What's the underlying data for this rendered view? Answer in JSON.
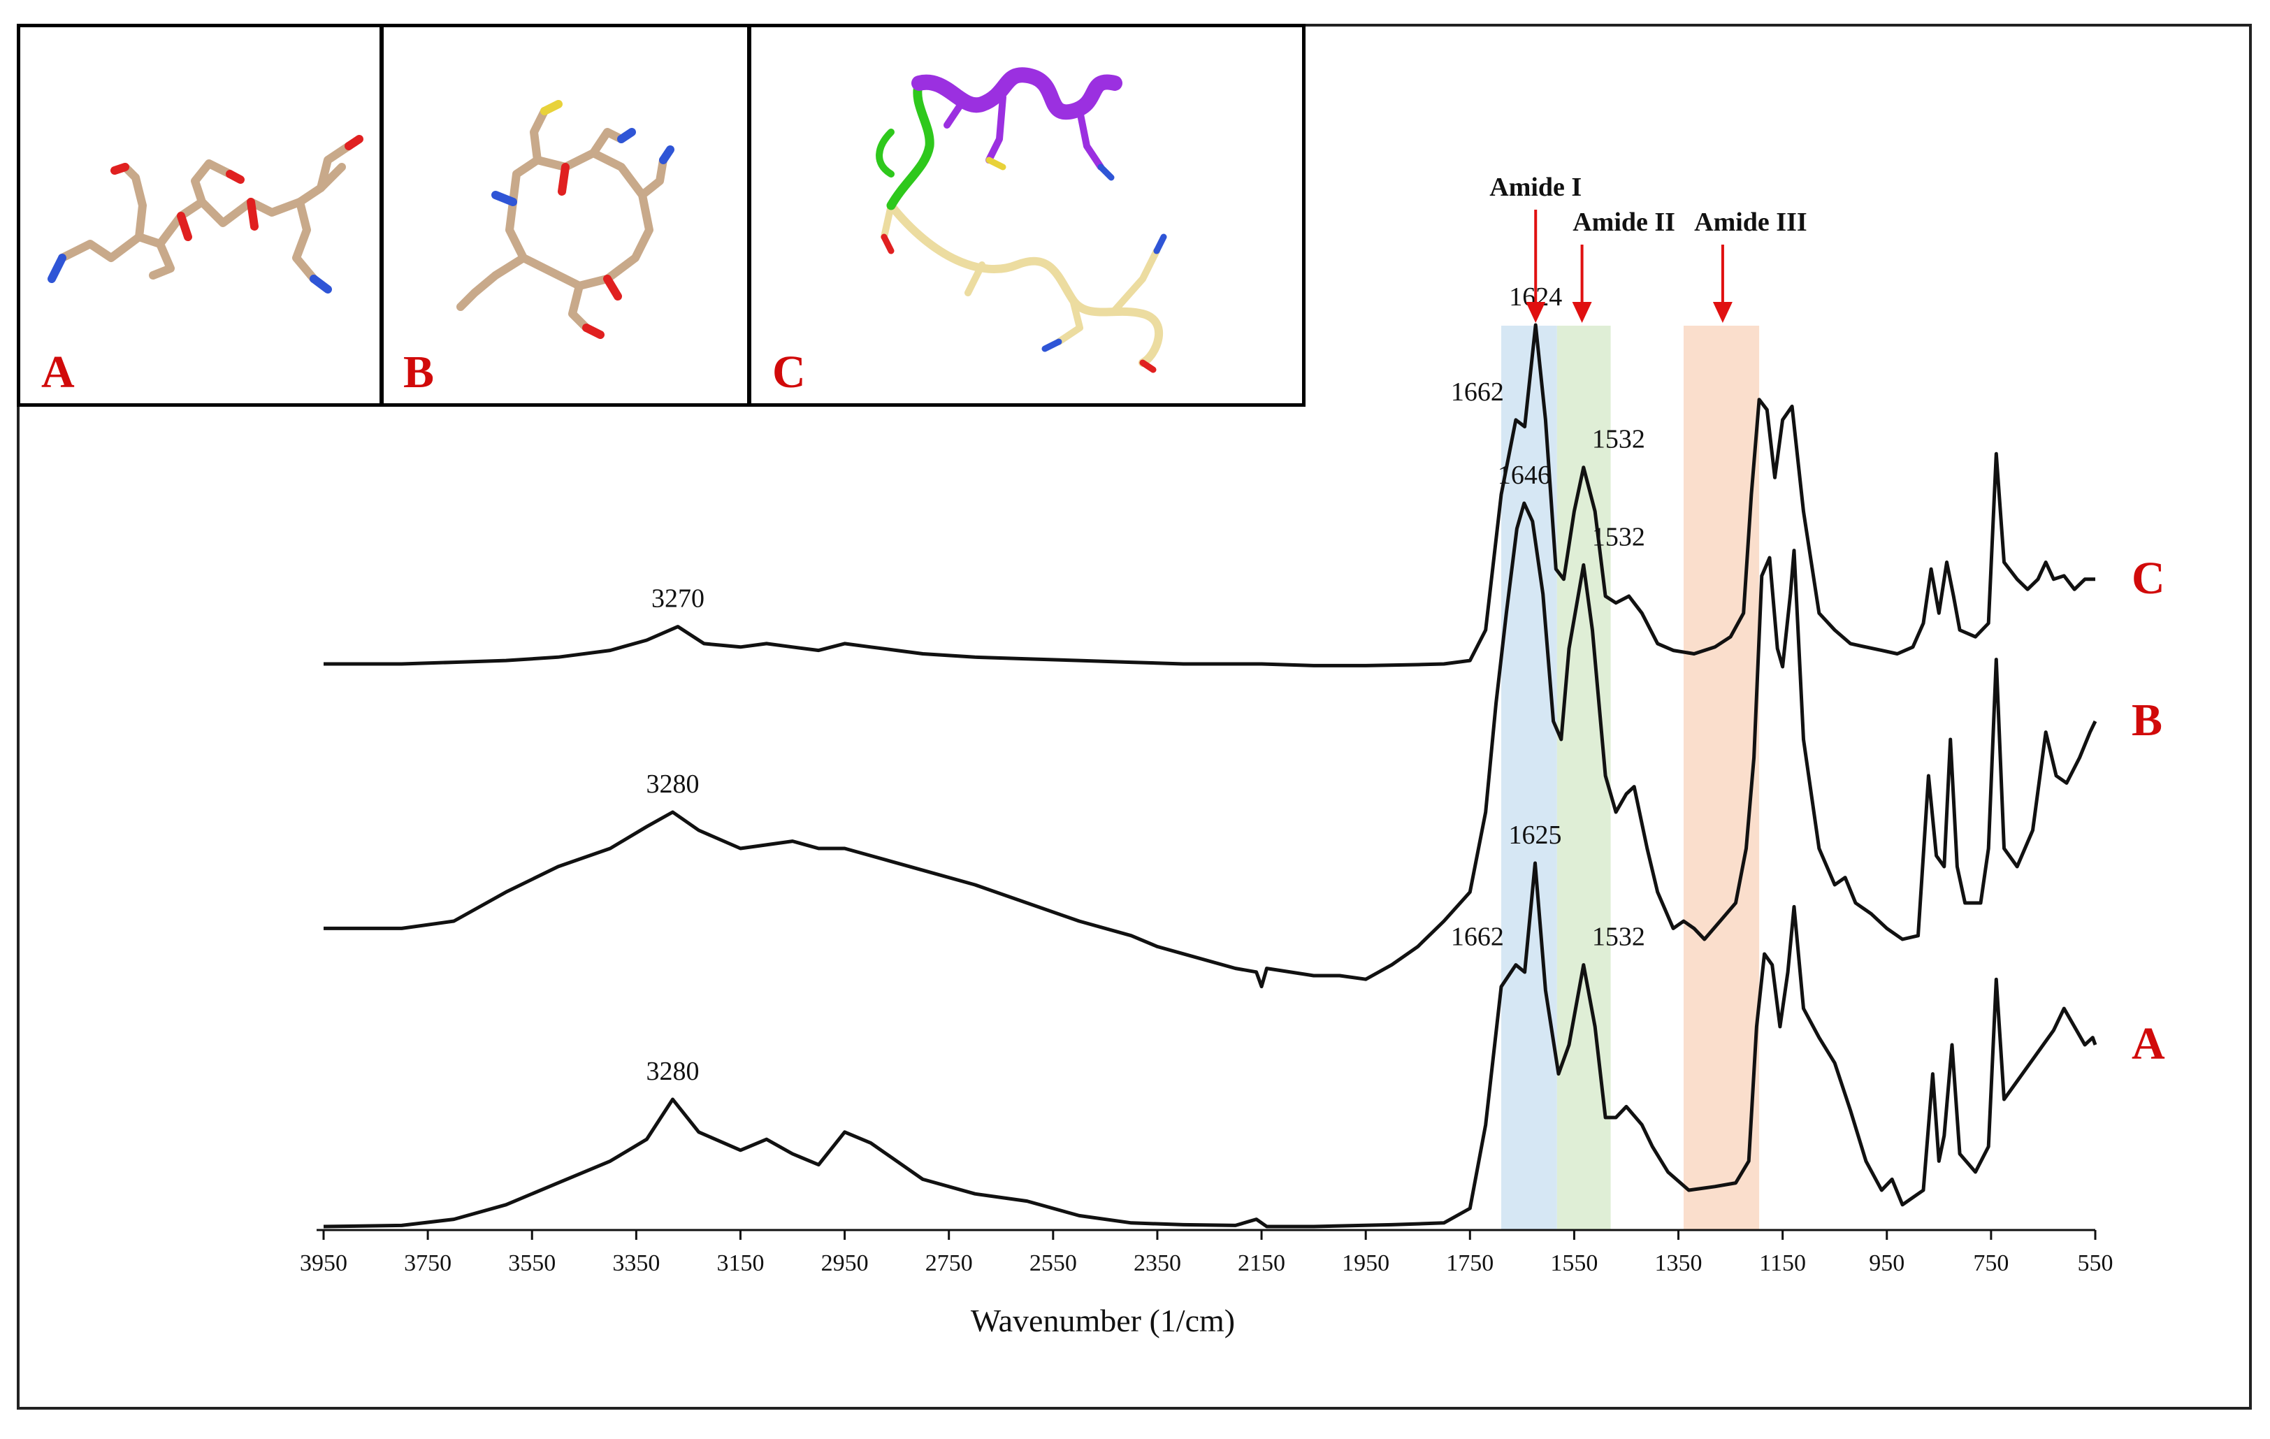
{
  "insets": [
    {
      "label": "A",
      "structure": "extended-peptide-stick-model"
    },
    {
      "label": "B",
      "structure": "compact-peptide-stick-model"
    },
    {
      "label": "C",
      "structure": "helix-ribbon-peptide-model"
    }
  ],
  "colors": {
    "curve": "#111111",
    "series_label": "#d10a0a",
    "arrow": "#e01010",
    "amide_I_band": "#cfe3f2",
    "amide_II_band": "#d9ebcf",
    "amide_III_band": "#f9d8c3",
    "carbon": "#c8a98a",
    "nitrogen": "#2f55d6",
    "oxygen": "#e02020",
    "sulfur": "#e8d23a",
    "helix_purple": "#9b30e0",
    "helix_green": "#2ec81c",
    "coil_yellow": "#ecdca0"
  },
  "chart_data": {
    "type": "line",
    "title": "",
    "xlabel": "Wavenumber (1/cm)",
    "ylabel": "",
    "xlim": [
      3950,
      550
    ],
    "x_reversed": true,
    "x_ticks": [
      3950,
      3750,
      3550,
      3350,
      3150,
      2950,
      2750,
      2550,
      2350,
      2150,
      1950,
      1750,
      1550,
      1350,
      1150,
      950,
      750,
      550
    ],
    "grid": false,
    "bands": [
      {
        "name": "Amide I",
        "from": 1690,
        "to": 1583
      },
      {
        "name": "Amide II",
        "from": 1583,
        "to": 1480
      },
      {
        "name": "Amide III",
        "from": 1340,
        "to": 1195
      }
    ],
    "band_arrows": [
      {
        "label": "Amide I",
        "x": 1624
      },
      {
        "label": "Amide II",
        "x": 1535
      },
      {
        "label": "Amide III",
        "x": 1265
      }
    ],
    "series": [
      {
        "name": "A",
        "peak_labels": [
          {
            "text": "3280",
            "x": 3280
          },
          {
            "text": "1662",
            "x": 1662
          },
          {
            "text": "1625",
            "x": 1625
          },
          {
            "text": "1532",
            "x": 1532
          }
        ],
        "points": [
          [
            3950,
            0.0
          ],
          [
            3800,
            0.003
          ],
          [
            3700,
            0.02
          ],
          [
            3600,
            0.06
          ],
          [
            3500,
            0.12
          ],
          [
            3400,
            0.18
          ],
          [
            3330,
            0.24
          ],
          [
            3280,
            0.35
          ],
          [
            3230,
            0.26
          ],
          [
            3150,
            0.21
          ],
          [
            3100,
            0.24
          ],
          [
            3050,
            0.2
          ],
          [
            3000,
            0.17
          ],
          [
            2950,
            0.26
          ],
          [
            2900,
            0.23
          ],
          [
            2870,
            0.2
          ],
          [
            2800,
            0.13
          ],
          [
            2700,
            0.09
          ],
          [
            2600,
            0.07
          ],
          [
            2500,
            0.03
          ],
          [
            2400,
            0.01
          ],
          [
            2300,
            0.005
          ],
          [
            2200,
            0.003
          ],
          [
            2160,
            0.02
          ],
          [
            2140,
            0.0
          ],
          [
            2050,
            0.0
          ],
          [
            1900,
            0.005
          ],
          [
            1800,
            0.01
          ],
          [
            1750,
            0.05
          ],
          [
            1720,
            0.28
          ],
          [
            1690,
            0.66
          ],
          [
            1662,
            0.72
          ],
          [
            1645,
            0.7
          ],
          [
            1625,
            1.0
          ],
          [
            1605,
            0.65
          ],
          [
            1580,
            0.42
          ],
          [
            1560,
            0.5
          ],
          [
            1532,
            0.72
          ],
          [
            1510,
            0.55
          ],
          [
            1490,
            0.3
          ],
          [
            1470,
            0.3
          ],
          [
            1450,
            0.33
          ],
          [
            1420,
            0.28
          ],
          [
            1400,
            0.22
          ],
          [
            1370,
            0.15
          ],
          [
            1330,
            0.1
          ],
          [
            1280,
            0.11
          ],
          [
            1240,
            0.12
          ],
          [
            1215,
            0.18
          ],
          [
            1200,
            0.55
          ],
          [
            1185,
            0.75
          ],
          [
            1170,
            0.72
          ],
          [
            1155,
            0.55
          ],
          [
            1140,
            0.7
          ],
          [
            1128,
            0.88
          ],
          [
            1110,
            0.6
          ],
          [
            1080,
            0.52
          ],
          [
            1050,
            0.45
          ],
          [
            1020,
            0.32
          ],
          [
            990,
            0.18
          ],
          [
            960,
            0.1
          ],
          [
            940,
            0.13
          ],
          [
            920,
            0.06
          ],
          [
            900,
            0.08
          ],
          [
            880,
            0.1
          ],
          [
            862,
            0.42
          ],
          [
            850,
            0.18
          ],
          [
            840,
            0.25
          ],
          [
            825,
            0.5
          ],
          [
            810,
            0.2
          ],
          [
            780,
            0.15
          ],
          [
            755,
            0.22
          ],
          [
            740,
            0.68
          ],
          [
            725,
            0.35
          ],
          [
            700,
            0.4
          ],
          [
            660,
            0.48
          ],
          [
            630,
            0.54
          ],
          [
            610,
            0.6
          ],
          [
            590,
            0.55
          ],
          [
            570,
            0.5
          ],
          [
            555,
            0.52
          ],
          [
            550,
            0.5
          ]
        ]
      },
      {
        "name": "B",
        "peak_labels": [
          {
            "text": "3280",
            "x": 3280
          },
          {
            "text": "1646",
            "x": 1646
          },
          {
            "text": "1532",
            "x": 1532
          }
        ],
        "points": [
          [
            3950,
            0.08
          ],
          [
            3800,
            0.08
          ],
          [
            3700,
            0.1
          ],
          [
            3600,
            0.18
          ],
          [
            3500,
            0.25
          ],
          [
            3400,
            0.3
          ],
          [
            3330,
            0.36
          ],
          [
            3280,
            0.4
          ],
          [
            3230,
            0.35
          ],
          [
            3150,
            0.3
          ],
          [
            3050,
            0.32
          ],
          [
            3000,
            0.3
          ],
          [
            2950,
            0.3
          ],
          [
            2900,
            0.28
          ],
          [
            2800,
            0.24
          ],
          [
            2700,
            0.2
          ],
          [
            2600,
            0.15
          ],
          [
            2500,
            0.1
          ],
          [
            2400,
            0.06
          ],
          [
            2350,
            0.03
          ],
          [
            2300,
            0.01
          ],
          [
            2200,
            -0.03
          ],
          [
            2160,
            -0.04
          ],
          [
            2150,
            -0.08
          ],
          [
            2140,
            -0.03
          ],
          [
            2050,
            -0.05
          ],
          [
            2000,
            -0.05
          ],
          [
            1950,
            -0.06
          ],
          [
            1900,
            -0.02
          ],
          [
            1850,
            0.03
          ],
          [
            1800,
            0.1
          ],
          [
            1750,
            0.18
          ],
          [
            1720,
            0.4
          ],
          [
            1700,
            0.7
          ],
          [
            1680,
            0.95
          ],
          [
            1660,
            1.18
          ],
          [
            1646,
            1.25
          ],
          [
            1630,
            1.2
          ],
          [
            1610,
            1.0
          ],
          [
            1590,
            0.65
          ],
          [
            1575,
            0.6
          ],
          [
            1560,
            0.85
          ],
          [
            1532,
            1.08
          ],
          [
            1515,
            0.9
          ],
          [
            1490,
            0.5
          ],
          [
            1470,
            0.4
          ],
          [
            1450,
            0.45
          ],
          [
            1435,
            0.47
          ],
          [
            1410,
            0.3
          ],
          [
            1390,
            0.18
          ],
          [
            1360,
            0.08
          ],
          [
            1340,
            0.1
          ],
          [
            1320,
            0.08
          ],
          [
            1300,
            0.05
          ],
          [
            1270,
            0.1
          ],
          [
            1240,
            0.15
          ],
          [
            1220,
            0.3
          ],
          [
            1205,
            0.55
          ],
          [
            1190,
            1.05
          ],
          [
            1175,
            1.1
          ],
          [
            1160,
            0.85
          ],
          [
            1150,
            0.8
          ],
          [
            1135,
            1.0
          ],
          [
            1128,
            1.12
          ],
          [
            1110,
            0.6
          ],
          [
            1080,
            0.3
          ],
          [
            1050,
            0.2
          ],
          [
            1030,
            0.22
          ],
          [
            1010,
            0.15
          ],
          [
            980,
            0.12
          ],
          [
            950,
            0.08
          ],
          [
            920,
            0.05
          ],
          [
            890,
            0.06
          ],
          [
            870,
            0.5
          ],
          [
            855,
            0.28
          ],
          [
            840,
            0.25
          ],
          [
            828,
            0.6
          ],
          [
            815,
            0.25
          ],
          [
            800,
            0.15
          ],
          [
            770,
            0.15
          ],
          [
            755,
            0.3
          ],
          [
            740,
            0.82
          ],
          [
            725,
            0.3
          ],
          [
            700,
            0.25
          ],
          [
            670,
            0.35
          ],
          [
            645,
            0.62
          ],
          [
            625,
            0.5
          ],
          [
            605,
            0.48
          ],
          [
            580,
            0.55
          ],
          [
            560,
            0.62
          ],
          [
            550,
            0.65
          ]
        ]
      },
      {
        "name": "C",
        "peak_labels": [
          {
            "text": "3270",
            "x": 3270
          },
          {
            "text": "1662",
            "x": 1662
          },
          {
            "text": "1624",
            "x": 1624
          },
          {
            "text": "1532",
            "x": 1532
          }
        ],
        "points": [
          [
            3950,
            0.0
          ],
          [
            3800,
            0.0
          ],
          [
            3700,
            0.005
          ],
          [
            3600,
            0.01
          ],
          [
            3500,
            0.02
          ],
          [
            3400,
            0.04
          ],
          [
            3330,
            0.07
          ],
          [
            3270,
            0.11
          ],
          [
            3220,
            0.06
          ],
          [
            3150,
            0.05
          ],
          [
            3100,
            0.06
          ],
          [
            3050,
            0.05
          ],
          [
            3000,
            0.04
          ],
          [
            2950,
            0.06
          ],
          [
            2900,
            0.05
          ],
          [
            2850,
            0.04
          ],
          [
            2800,
            0.03
          ],
          [
            2700,
            0.02
          ],
          [
            2600,
            0.015
          ],
          [
            2500,
            0.01
          ],
          [
            2400,
            0.005
          ],
          [
            2300,
            0.0
          ],
          [
            2200,
            0.0
          ],
          [
            2150,
            0.0
          ],
          [
            2050,
            -0.005
          ],
          [
            1950,
            -0.005
          ],
          [
            1850,
            -0.002
          ],
          [
            1800,
            0.0
          ],
          [
            1750,
            0.01
          ],
          [
            1720,
            0.1
          ],
          [
            1690,
            0.5
          ],
          [
            1662,
            0.72
          ],
          [
            1645,
            0.7
          ],
          [
            1624,
            1.0
          ],
          [
            1605,
            0.72
          ],
          [
            1585,
            0.28
          ],
          [
            1570,
            0.25
          ],
          [
            1550,
            0.45
          ],
          [
            1532,
            0.58
          ],
          [
            1510,
            0.45
          ],
          [
            1490,
            0.2
          ],
          [
            1470,
            0.18
          ],
          [
            1445,
            0.2
          ],
          [
            1420,
            0.15
          ],
          [
            1390,
            0.06
          ],
          [
            1360,
            0.04
          ],
          [
            1320,
            0.03
          ],
          [
            1280,
            0.05
          ],
          [
            1250,
            0.08
          ],
          [
            1225,
            0.15
          ],
          [
            1210,
            0.5
          ],
          [
            1195,
            0.78
          ],
          [
            1180,
            0.75
          ],
          [
            1165,
            0.55
          ],
          [
            1150,
            0.72
          ],
          [
            1132,
            0.76
          ],
          [
            1110,
            0.45
          ],
          [
            1080,
            0.15
          ],
          [
            1050,
            0.1
          ],
          [
            1020,
            0.06
          ],
          [
            990,
            0.05
          ],
          [
            960,
            0.04
          ],
          [
            930,
            0.03
          ],
          [
            900,
            0.05
          ],
          [
            880,
            0.12
          ],
          [
            865,
            0.28
          ],
          [
            850,
            0.15
          ],
          [
            835,
            0.3
          ],
          [
            822,
            0.2
          ],
          [
            810,
            0.1
          ],
          [
            780,
            0.08
          ],
          [
            755,
            0.12
          ],
          [
            740,
            0.62
          ],
          [
            725,
            0.3
          ],
          [
            700,
            0.25
          ],
          [
            680,
            0.22
          ],
          [
            660,
            0.25
          ],
          [
            645,
            0.3
          ],
          [
            630,
            0.25
          ],
          [
            610,
            0.26
          ],
          [
            590,
            0.22
          ],
          [
            570,
            0.25
          ],
          [
            550,
            0.25
          ]
        ]
      }
    ]
  }
}
